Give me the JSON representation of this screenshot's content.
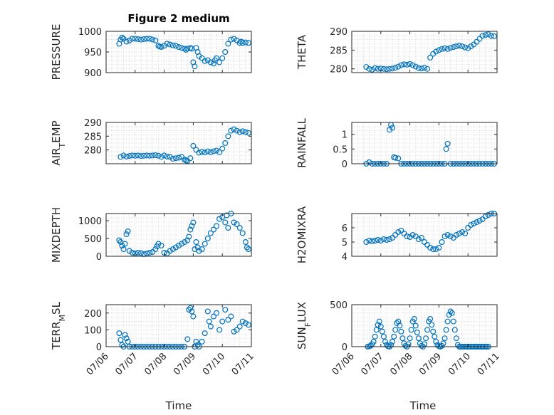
{
  "figure": {
    "title": "Figure 2 medium",
    "xlabel": "Time",
    "xticklabels": [
      "07/06",
      "07/07",
      "07/08",
      "07/09",
      "07/10",
      "07/11"
    ]
  },
  "chart_data": [
    {
      "type": "scatter",
      "ylabel": "PRESSURE",
      "ylim": [
        900,
        1000
      ],
      "yticks": [
        900,
        950,
        1000
      ],
      "xlim": [
        0,
        5
      ],
      "grid": true,
      "x": [
        0.45,
        0.5,
        0.55,
        0.6,
        0.7,
        0.8,
        0.9,
        1.0,
        1.1,
        1.2,
        1.3,
        1.4,
        1.5,
        1.6,
        1.7,
        1.8,
        1.85,
        1.9,
        2.0,
        2.1,
        2.2,
        2.3,
        2.4,
        2.5,
        2.6,
        2.7,
        2.75,
        2.8,
        2.9,
        2.95,
        3.0,
        3.05,
        3.1,
        3.15,
        3.2,
        3.3,
        3.4,
        3.5,
        3.6,
        3.7,
        3.75,
        3.8,
        3.9,
        4.0,
        4.1,
        4.2,
        4.3,
        4.4,
        4.5,
        4.6,
        4.65,
        4.7,
        4.8,
        4.9
      ],
      "y": [
        970,
        980,
        985,
        982,
        975,
        978,
        982,
        982,
        981,
        980,
        981,
        982,
        982,
        980,
        978,
        965,
        963,
        962,
        965,
        970,
        968,
        966,
        965,
        962,
        960,
        958,
        955,
        958,
        960,
        958,
        925,
        915,
        960,
        950,
        940,
        935,
        928,
        930,
        925,
        922,
        930,
        935,
        925,
        935,
        950,
        970,
        980,
        982,
        978,
        972,
        975,
        972,
        973,
        972
      ]
    },
    {
      "type": "scatter",
      "ylabel": "THETA",
      "ylim": [
        279,
        290
      ],
      "yticks": [
        280,
        285,
        290
      ],
      "xlim": [
        0,
        5
      ],
      "grid": true,
      "x": [
        0.5,
        0.6,
        0.7,
        0.8,
        0.9,
        1.0,
        1.1,
        1.2,
        1.3,
        1.4,
        1.5,
        1.6,
        1.7,
        1.8,
        1.9,
        2.0,
        2.1,
        2.2,
        2.3,
        2.4,
        2.5,
        2.6,
        2.7,
        2.8,
        2.9,
        3.0,
        3.1,
        3.2,
        3.3,
        3.4,
        3.5,
        3.6,
        3.7,
        3.8,
        3.9,
        4.0,
        4.1,
        4.2,
        4.3,
        4.4,
        4.5,
        4.6,
        4.7,
        4.8,
        4.9
      ],
      "y": [
        280.5,
        280,
        279.8,
        280.2,
        280,
        280.1,
        280,
        279.9,
        280,
        280.1,
        280.3,
        280.6,
        281,
        281.2,
        281.1,
        281.3,
        281,
        280.6,
        280.2,
        280.1,
        280.3,
        280,
        283,
        284,
        284.6,
        285,
        285.3,
        285.5,
        285.3,
        285.6,
        285.8,
        286,
        286.2,
        286,
        285.7,
        285.5,
        286,
        286.5,
        287.2,
        288,
        288.8,
        289,
        289.2,
        288.8,
        288.7
      ]
    },
    {
      "type": "scatter",
      "ylabel": "AIR_TEMP",
      "ylim": [
        275,
        290
      ],
      "yticks": [
        280,
        285,
        290
      ],
      "xlim": [
        0,
        5
      ],
      "grid": true,
      "x": [
        0.5,
        0.6,
        0.7,
        0.8,
        0.9,
        1.0,
        1.1,
        1.2,
        1.3,
        1.4,
        1.5,
        1.6,
        1.7,
        1.8,
        1.9,
        2.0,
        2.1,
        2.2,
        2.3,
        2.4,
        2.5,
        2.6,
        2.7,
        2.75,
        2.8,
        2.9,
        3.0,
        3.1,
        3.2,
        3.3,
        3.4,
        3.5,
        3.6,
        3.7,
        3.8,
        3.9,
        4.0,
        4.1,
        4.2,
        4.3,
        4.4,
        4.5,
        4.6,
        4.7,
        4.8,
        4.9
      ],
      "y": [
        277.5,
        278,
        277.6,
        277.8,
        278,
        277.9,
        278,
        277.8,
        277.9,
        278,
        277.9,
        278,
        278.1,
        277.9,
        277.5,
        278,
        277.6,
        277.5,
        276.8,
        277,
        277.2,
        277.5,
        276.5,
        276.2,
        276,
        277,
        281.5,
        280,
        279,
        279.3,
        279.1,
        279.5,
        279.2,
        279.5,
        279.8,
        279.2,
        280.5,
        282.5,
        285,
        287,
        287.5,
        287,
        286.5,
        286.8,
        286.5,
        286.2
      ]
    },
    {
      "type": "scatter",
      "ylabel": "RAINFALL",
      "ylim": [
        0,
        1.4
      ],
      "yticks": [
        0,
        0.5,
        1
      ],
      "xlim": [
        0,
        5
      ],
      "grid": true,
      "x": [
        0.5,
        0.6,
        0.7,
        0.8,
        0.9,
        1.0,
        1.1,
        1.2,
        1.3,
        1.35,
        1.4,
        1.45,
        1.5,
        1.6,
        1.7,
        1.8,
        1.9,
        2.0,
        2.1,
        2.2,
        2.3,
        2.4,
        2.5,
        2.6,
        2.7,
        2.8,
        2.9,
        3.0,
        3.1,
        3.2,
        3.25,
        3.3,
        3.4,
        3.5,
        3.6,
        3.7,
        3.8,
        3.9,
        4.0,
        4.1,
        4.2,
        4.3,
        4.4,
        4.5,
        4.6,
        4.7,
        4.8,
        4.9
      ],
      "y": [
        0,
        0.05,
        0,
        0,
        0,
        0,
        0,
        0,
        1.15,
        1.32,
        1.22,
        0.22,
        0.2,
        0.18,
        0,
        0,
        0,
        0,
        0,
        0,
        0,
        0,
        0,
        0,
        0,
        0,
        0,
        0,
        0,
        0,
        0.5,
        0.68,
        0,
        0,
        0,
        0,
        0,
        0,
        0,
        0,
        0,
        0,
        0,
        0,
        0,
        0,
        0,
        0
      ]
    },
    {
      "type": "scatter",
      "ylabel": "MIXDEPTH",
      "ylim": [
        0,
        1200
      ],
      "yticks": [
        0,
        500,
        1000
      ],
      "xlim": [
        0,
        5
      ],
      "grid": true,
      "x": [
        0.45,
        0.5,
        0.55,
        0.6,
        0.65,
        0.7,
        0.75,
        0.8,
        0.9,
        1.0,
        1.1,
        1.2,
        1.3,
        1.4,
        1.5,
        1.6,
        1.7,
        1.75,
        1.8,
        1.9,
        2.0,
        2.1,
        2.2,
        2.3,
        2.4,
        2.5,
        2.6,
        2.7,
        2.8,
        2.85,
        2.9,
        2.95,
        3.0,
        3.05,
        3.1,
        3.15,
        3.2,
        3.3,
        3.4,
        3.5,
        3.6,
        3.7,
        3.8,
        3.9,
        4.0,
        4.1,
        4.15,
        4.2,
        4.3,
        4.4,
        4.5,
        4.6,
        4.7,
        4.8,
        4.85,
        4.9
      ],
      "y": [
        450,
        400,
        300,
        200,
        350,
        620,
        700,
        150,
        100,
        80,
        100,
        90,
        60,
        80,
        100,
        120,
        200,
        280,
        350,
        300,
        100,
        80,
        150,
        200,
        250,
        300,
        350,
        400,
        450,
        550,
        750,
        850,
        950,
        200,
        400,
        250,
        150,
        200,
        350,
        500,
        650,
        750,
        850,
        1050,
        1100,
        950,
        1150,
        800,
        1200,
        950,
        900,
        800,
        650,
        400,
        250,
        200
      ]
    },
    {
      "type": "scatter",
      "ylabel": "H2OMIXRA",
      "ylim": [
        4,
        7
      ],
      "yticks": [
        4,
        5,
        6
      ],
      "xlim": [
        0,
        5
      ],
      "grid": true,
      "x": [
        0.5,
        0.6,
        0.7,
        0.8,
        0.9,
        1.0,
        1.1,
        1.2,
        1.3,
        1.4,
        1.5,
        1.6,
        1.7,
        1.8,
        1.9,
        2.0,
        2.1,
        2.2,
        2.3,
        2.4,
        2.5,
        2.6,
        2.7,
        2.8,
        2.9,
        3.0,
        3.1,
        3.2,
        3.3,
        3.4,
        3.5,
        3.6,
        3.7,
        3.8,
        3.9,
        4.0,
        4.1,
        4.2,
        4.3,
        4.4,
        4.5,
        4.6,
        4.7,
        4.8,
        4.9
      ],
      "y": [
        5,
        5.1,
        5.05,
        5.1,
        5.15,
        5.1,
        5.2,
        5.15,
        5.2,
        5.3,
        5.5,
        5.7,
        5.8,
        5.6,
        5.4,
        5.35,
        5.5,
        5.4,
        5.2,
        5.3,
        5.0,
        4.8,
        4.6,
        4.5,
        4.5,
        4.6,
        5.0,
        5.4,
        5.5,
        5.4,
        5.3,
        5.5,
        5.6,
        5.7,
        5.6,
        6.0,
        6.2,
        6.3,
        6.4,
        6.5,
        6.6,
        6.8,
        6.9,
        7.0,
        7.0
      ]
    },
    {
      "type": "scatter",
      "ylabel": "TERR_MSL",
      "ylim": [
        0,
        250
      ],
      "yticks": [
        0,
        100,
        200
      ],
      "xlim": [
        0,
        5
      ],
      "grid": true,
      "x": [
        0.45,
        0.5,
        0.55,
        0.6,
        0.65,
        0.7,
        0.75,
        0.8,
        0.9,
        1.0,
        1.1,
        1.2,
        1.3,
        1.4,
        1.5,
        1.6,
        1.7,
        1.8,
        1.9,
        2.0,
        2.1,
        2.2,
        2.3,
        2.4,
        2.5,
        2.6,
        2.7,
        2.8,
        2.85,
        2.9,
        2.95,
        3.0,
        3.05,
        3.1,
        3.15,
        3.2,
        3.3,
        3.4,
        3.5,
        3.55,
        3.6,
        3.7,
        3.8,
        3.9,
        4.0,
        4.1,
        4.2,
        4.3,
        4.4,
        4.5,
        4.6,
        4.7,
        4.8,
        4.9
      ],
      "y": [
        80,
        40,
        10,
        0,
        70,
        50,
        30,
        0,
        0,
        0,
        0,
        0,
        0,
        0,
        0,
        0,
        0,
        0,
        0,
        0,
        0,
        0,
        0,
        0,
        0,
        0,
        0,
        45,
        220,
        230,
        210,
        180,
        0,
        30,
        10,
        0,
        30,
        80,
        210,
        150,
        120,
        180,
        200,
        100,
        150,
        220,
        160,
        180,
        90,
        100,
        120,
        150,
        140,
        130
      ]
    },
    {
      "type": "scatter",
      "ylabel": "SUN_FLUX",
      "ylim": [
        0,
        500
      ],
      "yticks": [
        0,
        500
      ],
      "xlim": [
        0,
        5
      ],
      "grid": true,
      "x": [
        0.55,
        0.6,
        0.65,
        0.7,
        0.75,
        0.8,
        0.85,
        0.9,
        0.95,
        1.0,
        1.05,
        1.1,
        1.15,
        1.2,
        1.25,
        1.3,
        1.35,
        1.4,
        1.45,
        1.5,
        1.55,
        1.6,
        1.65,
        1.7,
        1.75,
        1.8,
        1.85,
        1.9,
        1.95,
        2.0,
        2.05,
        2.1,
        2.15,
        2.2,
        2.25,
        2.3,
        2.35,
        2.4,
        2.45,
        2.5,
        2.55,
        2.6,
        2.65,
        2.7,
        2.75,
        2.8,
        2.85,
        2.9,
        2.95,
        3.0,
        3.05,
        3.1,
        3.15,
        3.2,
        3.25,
        3.3,
        3.35,
        3.4,
        3.45,
        3.5,
        3.55,
        3.6,
        3.65,
        3.7,
        3.75,
        3.8,
        3.85,
        3.9,
        3.95,
        4.0,
        4.05,
        4.1,
        4.15,
        4.2,
        4.25,
        4.3,
        4.35,
        4.4,
        4.45,
        4.5,
        4.55,
        4.6,
        4.65,
        4.7
      ],
      "y": [
        0,
        5,
        10,
        30,
        60,
        120,
        200,
        260,
        300,
        240,
        180,
        120,
        60,
        20,
        5,
        0,
        20,
        60,
        120,
        200,
        280,
        300,
        250,
        180,
        100,
        40,
        10,
        0,
        30,
        100,
        200,
        300,
        330,
        250,
        170,
        100,
        40,
        10,
        0,
        30,
        100,
        200,
        300,
        330,
        260,
        180,
        120,
        60,
        20,
        5,
        0,
        10,
        40,
        100,
        200,
        300,
        380,
        420,
        400,
        300,
        200,
        100,
        20,
        0,
        0,
        0,
        0,
        0,
        0,
        0,
        0,
        0,
        0,
        0,
        0,
        0,
        0,
        0,
        0,
        0,
        0,
        0,
        0,
        0
      ]
    }
  ]
}
